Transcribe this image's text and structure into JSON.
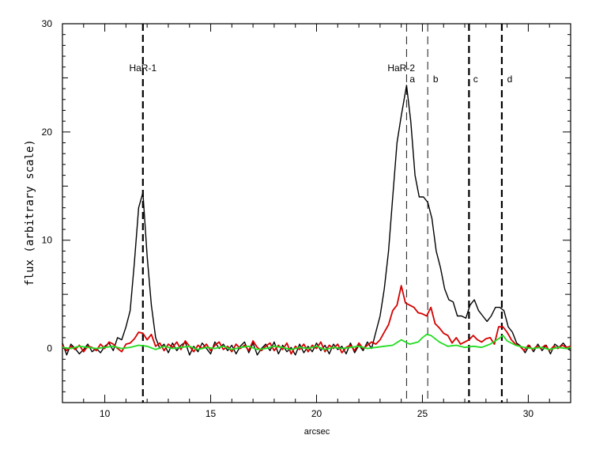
{
  "chart_data": {
    "type": "line",
    "xlabel": "arcsec",
    "ylabel": "flux (arbitrary scale)",
    "xlim": [
      8,
      32
    ],
    "ylim": [
      -5,
      30
    ],
    "xticks": [
      10,
      15,
      20,
      25,
      30
    ],
    "yticks": [
      0,
      10,
      20,
      30
    ],
    "grid": false,
    "vlines": [
      {
        "x": 11.8,
        "style": "thick-dashed"
      },
      {
        "x": 24.25,
        "style": "thin-dashed"
      },
      {
        "x": 25.25,
        "style": "thin-dashed"
      },
      {
        "x": 27.2,
        "style": "thick-dashed"
      },
      {
        "x": 28.75,
        "style": "thick-dashed"
      }
    ],
    "annotations": [
      {
        "text": "HaR-1",
        "x": 11.8,
        "y": 25.6
      },
      {
        "text": "HaR-2",
        "x": 24.0,
        "y": 25.6
      },
      {
        "text": "a",
        "x": 24.4,
        "y": 24.6
      },
      {
        "text": "b",
        "x": 25.5,
        "y": 24.6
      },
      {
        "text": "c",
        "x": 27.4,
        "y": 24.6
      },
      {
        "text": "d",
        "x": 29.0,
        "y": 24.6
      }
    ],
    "series": [
      {
        "color": "#000000",
        "points": [
          [
            8.0,
            0.5
          ],
          [
            8.2,
            -0.6
          ],
          [
            8.4,
            0.4
          ],
          [
            8.6,
            0.0
          ],
          [
            8.8,
            -0.5
          ],
          [
            9.0,
            -0.1
          ],
          [
            9.2,
            0.4
          ],
          [
            9.4,
            -0.3
          ],
          [
            9.6,
            0.0
          ],
          [
            9.8,
            -0.4
          ],
          [
            10.0,
            0.2
          ],
          [
            10.2,
            0.5
          ],
          [
            10.4,
            -0.2
          ],
          [
            10.6,
            1.0
          ],
          [
            10.8,
            0.8
          ],
          [
            11.0,
            2.0
          ],
          [
            11.2,
            3.5
          ],
          [
            11.4,
            8.0
          ],
          [
            11.6,
            13.0
          ],
          [
            11.8,
            14.4
          ],
          [
            12.0,
            8.5
          ],
          [
            12.2,
            4.0
          ],
          [
            12.4,
            1.0
          ],
          [
            12.6,
            0.0
          ],
          [
            12.8,
            0.4
          ],
          [
            13.0,
            -0.4
          ],
          [
            13.2,
            0.5
          ],
          [
            13.4,
            -0.2
          ],
          [
            13.6,
            0.3
          ],
          [
            13.8,
            0.6
          ],
          [
            14.0,
            -0.6
          ],
          [
            14.2,
            0.2
          ],
          [
            14.4,
            -0.3
          ],
          [
            14.6,
            0.5
          ],
          [
            14.8,
            0.0
          ],
          [
            15.0,
            -0.5
          ],
          [
            15.2,
            0.6
          ],
          [
            15.4,
            0.0
          ],
          [
            15.6,
            0.4
          ],
          [
            15.8,
            -0.2
          ],
          [
            16.0,
            0.3
          ],
          [
            16.2,
            -0.5
          ],
          [
            16.4,
            0.2
          ],
          [
            16.6,
            0.6
          ],
          [
            16.8,
            -0.4
          ],
          [
            17.0,
            0.5
          ],
          [
            17.2,
            -0.6
          ],
          [
            17.4,
            0.0
          ],
          [
            17.6,
            0.4
          ],
          [
            17.8,
            -0.2
          ],
          [
            18.0,
            0.6
          ],
          [
            18.2,
            -0.5
          ],
          [
            18.4,
            0.3
          ],
          [
            18.6,
            -0.3
          ],
          [
            18.8,
            0.1
          ],
          [
            19.0,
            -0.6
          ],
          [
            19.2,
            0.4
          ],
          [
            19.4,
            -0.4
          ],
          [
            19.6,
            0.2
          ],
          [
            19.8,
            -0.3
          ],
          [
            20.0,
            0.5
          ],
          [
            20.2,
            -0.2
          ],
          [
            20.4,
            0.3
          ],
          [
            20.6,
            -0.5
          ],
          [
            20.8,
            0.4
          ],
          [
            21.0,
            -0.1
          ],
          [
            21.2,
            0.2
          ],
          [
            21.4,
            -0.5
          ],
          [
            21.6,
            0.5
          ],
          [
            21.8,
            -0.4
          ],
          [
            22.0,
            0.3
          ],
          [
            22.2,
            -0.2
          ],
          [
            22.4,
            0.6
          ],
          [
            22.6,
            0.0
          ],
          [
            22.8,
            1.5
          ],
          [
            23.0,
            3.0
          ],
          [
            23.2,
            5.5
          ],
          [
            23.4,
            9.0
          ],
          [
            23.6,
            14.0
          ],
          [
            23.8,
            19.0
          ],
          [
            24.0,
            21.5
          ],
          [
            24.25,
            24.3
          ],
          [
            24.45,
            21.0
          ],
          [
            24.65,
            16.0
          ],
          [
            24.85,
            14.0
          ],
          [
            25.05,
            14.0
          ],
          [
            25.25,
            13.5
          ],
          [
            25.45,
            12.0
          ],
          [
            25.65,
            9.0
          ],
          [
            25.85,
            7.5
          ],
          [
            26.05,
            5.5
          ],
          [
            26.25,
            4.5
          ],
          [
            26.45,
            4.3
          ],
          [
            26.65,
            3.0
          ],
          [
            26.85,
            3.0
          ],
          [
            27.05,
            2.8
          ],
          [
            27.25,
            4.0
          ],
          [
            27.45,
            4.5
          ],
          [
            27.65,
            3.5
          ],
          [
            27.85,
            3.0
          ],
          [
            28.05,
            2.5
          ],
          [
            28.25,
            3.0
          ],
          [
            28.45,
            3.8
          ],
          [
            28.65,
            3.8
          ],
          [
            28.85,
            3.5
          ],
          [
            29.05,
            2.0
          ],
          [
            29.25,
            1.5
          ],
          [
            29.45,
            0.5
          ],
          [
            29.65,
            0.2
          ],
          [
            29.85,
            -0.4
          ],
          [
            30.05,
            0.3
          ],
          [
            30.25,
            -0.3
          ],
          [
            30.45,
            0.4
          ],
          [
            30.65,
            -0.2
          ],
          [
            30.85,
            0.3
          ],
          [
            31.05,
            -0.5
          ],
          [
            31.25,
            0.4
          ],
          [
            31.45,
            0.1
          ],
          [
            31.65,
            0.5
          ],
          [
            31.85,
            0.0
          ],
          [
            32.0,
            -0.2
          ]
        ]
      },
      {
        "color": "#d40000",
        "points": [
          [
            8.0,
            0.3
          ],
          [
            8.2,
            -0.2
          ],
          [
            8.4,
            0.2
          ],
          [
            8.6,
            -0.1
          ],
          [
            8.8,
            0.3
          ],
          [
            9.0,
            -0.3
          ],
          [
            9.2,
            0.2
          ],
          [
            9.4,
            0.1
          ],
          [
            9.6,
            -0.2
          ],
          [
            9.8,
            0.4
          ],
          [
            10.0,
            0.0
          ],
          [
            10.2,
            0.6
          ],
          [
            10.4,
            0.4
          ],
          [
            10.6,
            0.0
          ],
          [
            10.8,
            -0.3
          ],
          [
            11.0,
            0.4
          ],
          [
            11.2,
            0.5
          ],
          [
            11.4,
            0.9
          ],
          [
            11.6,
            1.5
          ],
          [
            11.8,
            1.4
          ],
          [
            12.0,
            0.8
          ],
          [
            12.2,
            1.3
          ],
          [
            12.4,
            0.2
          ],
          [
            12.6,
            0.5
          ],
          [
            12.8,
            -0.2
          ],
          [
            13.0,
            0.4
          ],
          [
            13.2,
            0.1
          ],
          [
            13.4,
            0.6
          ],
          [
            13.6,
            -0.1
          ],
          [
            13.8,
            0.7
          ],
          [
            14.0,
            0.2
          ],
          [
            14.2,
            -0.3
          ],
          [
            14.4,
            0.3
          ],
          [
            14.6,
            0.0
          ],
          [
            14.8,
            0.4
          ],
          [
            15.0,
            -0.2
          ],
          [
            15.2,
            0.3
          ],
          [
            15.4,
            0.6
          ],
          [
            15.6,
            -0.1
          ],
          [
            15.8,
            0.2
          ],
          [
            16.0,
            -0.3
          ],
          [
            16.2,
            0.4
          ],
          [
            16.4,
            0.0
          ],
          [
            16.6,
            0.3
          ],
          [
            16.8,
            -0.2
          ],
          [
            17.0,
            0.7
          ],
          [
            17.2,
            0.1
          ],
          [
            17.4,
            -0.2
          ],
          [
            17.6,
            0.2
          ],
          [
            17.8,
            0.5
          ],
          [
            18.0,
            -0.2
          ],
          [
            18.2,
            0.3
          ],
          [
            18.4,
            -0.1
          ],
          [
            18.6,
            0.5
          ],
          [
            18.8,
            -0.5
          ],
          [
            19.0,
            0.2
          ],
          [
            19.2,
            -0.1
          ],
          [
            19.4,
            0.4
          ],
          [
            19.6,
            -0.3
          ],
          [
            19.8,
            0.3
          ],
          [
            20.0,
            0.0
          ],
          [
            20.2,
            0.6
          ],
          [
            20.4,
            -0.3
          ],
          [
            20.6,
            0.3
          ],
          [
            20.8,
            0.0
          ],
          [
            21.0,
            0.4
          ],
          [
            21.2,
            -0.4
          ],
          [
            21.4,
            0.1
          ],
          [
            21.6,
            0.3
          ],
          [
            21.8,
            -0.2
          ],
          [
            22.0,
            0.5
          ],
          [
            22.2,
            0.0
          ],
          [
            22.4,
            0.3
          ],
          [
            22.6,
            0.6
          ],
          [
            22.8,
            0.4
          ],
          [
            23.0,
            0.8
          ],
          [
            23.2,
            1.5
          ],
          [
            23.4,
            2.2
          ],
          [
            23.6,
            3.5
          ],
          [
            23.8,
            4.0
          ],
          [
            24.0,
            5.8
          ],
          [
            24.2,
            4.2
          ],
          [
            24.4,
            4.0
          ],
          [
            24.6,
            3.8
          ],
          [
            24.8,
            3.3
          ],
          [
            25.0,
            3.2
          ],
          [
            25.2,
            3.0
          ],
          [
            25.4,
            3.8
          ],
          [
            25.6,
            2.3
          ],
          [
            25.8,
            1.9
          ],
          [
            26.0,
            1.4
          ],
          [
            26.2,
            1.2
          ],
          [
            26.4,
            0.5
          ],
          [
            26.6,
            1.0
          ],
          [
            26.8,
            0.4
          ],
          [
            27.0,
            0.6
          ],
          [
            27.2,
            0.8
          ],
          [
            27.4,
            1.2
          ],
          [
            27.6,
            0.8
          ],
          [
            27.8,
            0.6
          ],
          [
            28.0,
            0.9
          ],
          [
            28.2,
            1.0
          ],
          [
            28.4,
            0.4
          ],
          [
            28.6,
            2.0
          ],
          [
            28.8,
            2.0
          ],
          [
            29.0,
            1.5
          ],
          [
            29.2,
            0.8
          ],
          [
            29.4,
            0.4
          ],
          [
            29.6,
            0.2
          ],
          [
            29.8,
            -0.2
          ],
          [
            30.0,
            0.3
          ],
          [
            30.2,
            -0.1
          ],
          [
            30.4,
            0.2
          ],
          [
            30.6,
            0.0
          ],
          [
            30.8,
            0.3
          ],
          [
            31.0,
            -0.2
          ],
          [
            31.2,
            0.2
          ],
          [
            31.4,
            0.0
          ],
          [
            31.6,
            0.3
          ],
          [
            31.8,
            0.1
          ],
          [
            32.0,
            0.2
          ]
        ]
      },
      {
        "color": "#22dd22",
        "points": [
          [
            8.0,
            0.1
          ],
          [
            8.4,
            0.0
          ],
          [
            8.8,
            0.2
          ],
          [
            9.2,
            0.1
          ],
          [
            9.6,
            0.0
          ],
          [
            10.0,
            0.1
          ],
          [
            10.4,
            0.2
          ],
          [
            10.8,
            0.0
          ],
          [
            11.2,
            0.1
          ],
          [
            11.6,
            0.3
          ],
          [
            12.0,
            0.2
          ],
          [
            12.4,
            -0.1
          ],
          [
            12.8,
            0.2
          ],
          [
            13.2,
            0.0
          ],
          [
            13.6,
            0.1
          ],
          [
            14.0,
            0.2
          ],
          [
            14.4,
            -0.1
          ],
          [
            14.8,
            0.1
          ],
          [
            15.2,
            0.0
          ],
          [
            15.6,
            0.2
          ],
          [
            16.0,
            -0.1
          ],
          [
            16.4,
            0.1
          ],
          [
            16.8,
            0.2
          ],
          [
            17.2,
            -0.1
          ],
          [
            17.6,
            0.0
          ],
          [
            18.0,
            0.2
          ],
          [
            18.4,
            0.1
          ],
          [
            18.8,
            -0.1
          ],
          [
            19.2,
            0.1
          ],
          [
            19.6,
            0.0
          ],
          [
            20.0,
            0.2
          ],
          [
            20.4,
            -0.1
          ],
          [
            20.8,
            0.1
          ],
          [
            21.2,
            0.0
          ],
          [
            21.6,
            0.1
          ],
          [
            22.0,
            0.2
          ],
          [
            22.4,
            0.0
          ],
          [
            22.8,
            0.1
          ],
          [
            23.2,
            0.2
          ],
          [
            23.6,
            0.3
          ],
          [
            24.0,
            0.8
          ],
          [
            24.2,
            0.6
          ],
          [
            24.4,
            0.4
          ],
          [
            24.8,
            0.6
          ],
          [
            25.0,
            1.0
          ],
          [
            25.2,
            1.3
          ],
          [
            25.4,
            1.2
          ],
          [
            25.8,
            0.6
          ],
          [
            26.2,
            0.2
          ],
          [
            26.6,
            0.3
          ],
          [
            27.0,
            0.1
          ],
          [
            27.4,
            0.2
          ],
          [
            27.8,
            0.1
          ],
          [
            28.2,
            0.4
          ],
          [
            28.6,
            0.9
          ],
          [
            28.8,
            1.2
          ],
          [
            29.0,
            0.7
          ],
          [
            29.4,
            0.3
          ],
          [
            29.8,
            0.1
          ],
          [
            30.2,
            0.0
          ],
          [
            30.6,
            0.1
          ],
          [
            31.0,
            -0.1
          ],
          [
            31.4,
            0.1
          ],
          [
            31.8,
            0.0
          ],
          [
            32.0,
            0.1
          ]
        ]
      }
    ]
  }
}
